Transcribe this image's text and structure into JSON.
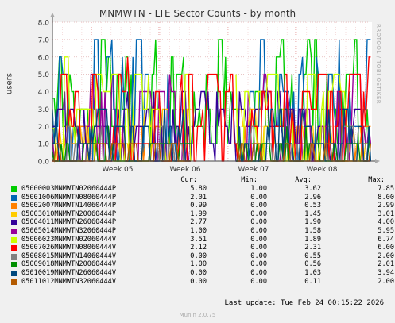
{
  "title": "MNMWTN - LTE Sector Counts - by month",
  "vertical_label": "users",
  "watermark": "RRDTOOL / TOBI OETIKER",
  "legend_headers": {
    "cur": "Cur:",
    "min": "Min:",
    "avg": "Avg:",
    "max": "Max:"
  },
  "footer": "Last update: Tue Feb 24 00:15:22 2026",
  "munin": "Munin 2.0.75",
  "chart_data": {
    "type": "line",
    "title": "MNMWTN - LTE Sector Counts - by month",
    "ylabel": "users",
    "ylim": [
      0,
      8
    ],
    "y_ticks": [
      "0.0",
      "1.0",
      "2.0",
      "3.0",
      "4.0",
      "5.0",
      "6.0",
      "7.0",
      "8.0"
    ],
    "x_ticks": [
      "Week 05",
      "Week 06",
      "Week 07",
      "Week 08"
    ],
    "grid": true,
    "series": [
      {
        "name": "05000003MNMWTN02060444P",
        "color": "#00cc00",
        "cur": "5.80",
        "min": "1.00",
        "avg": "3.62",
        "max": "7.85"
      },
      {
        "name": "05001006MNMWTN08060444P",
        "color": "#0066b3",
        "cur": "2.01",
        "min": "0.00",
        "avg": "2.96",
        "max": "8.00"
      },
      {
        "name": "05002007MNMWTN14060444P",
        "color": "#ff8000",
        "cur": "0.99",
        "min": "0.00",
        "avg": "0.53",
        "max": "2.99"
      },
      {
        "name": "05003010MNMWTN20060444P",
        "color": "#ffcc00",
        "cur": "1.99",
        "min": "0.00",
        "avg": "1.45",
        "max": "3.01"
      },
      {
        "name": "05004011MNMWTN26060444P",
        "color": "#330099",
        "cur": "2.77",
        "min": "0.00",
        "avg": "1.90",
        "max": "4.00"
      },
      {
        "name": "05005014MNMWTN32060444P",
        "color": "#990099",
        "cur": "1.00",
        "min": "0.00",
        "avg": "1.58",
        "max": "5.95"
      },
      {
        "name": "05006023MNMWTN02060444V",
        "color": "#ccff00",
        "cur": "3.51",
        "min": "0.00",
        "avg": "1.89",
        "max": "6.74"
      },
      {
        "name": "05007026MNMWTN08060444V",
        "color": "#ff0000",
        "cur": "2.12",
        "min": "0.00",
        "avg": "2.31",
        "max": "6.00"
      },
      {
        "name": "05008015MNMWTN14060444V",
        "color": "#808080",
        "cur": "0.00",
        "min": "0.00",
        "avg": "0.55",
        "max": "2.00"
      },
      {
        "name": "05009018MNMWTN20060444V",
        "color": "#008f00",
        "cur": "1.00",
        "min": "0.00",
        "avg": "0.56",
        "max": "2.01"
      },
      {
        "name": "05010019MNMWTN26060444V",
        "color": "#00487d",
        "cur": "0.00",
        "min": "0.00",
        "avg": "1.03",
        "max": "3.94"
      },
      {
        "name": "05011012MNMWTN32060444V",
        "color": "#b35a00",
        "cur": "0.00",
        "min": "0.00",
        "avg": "0.11",
        "max": "2.00"
      }
    ]
  }
}
